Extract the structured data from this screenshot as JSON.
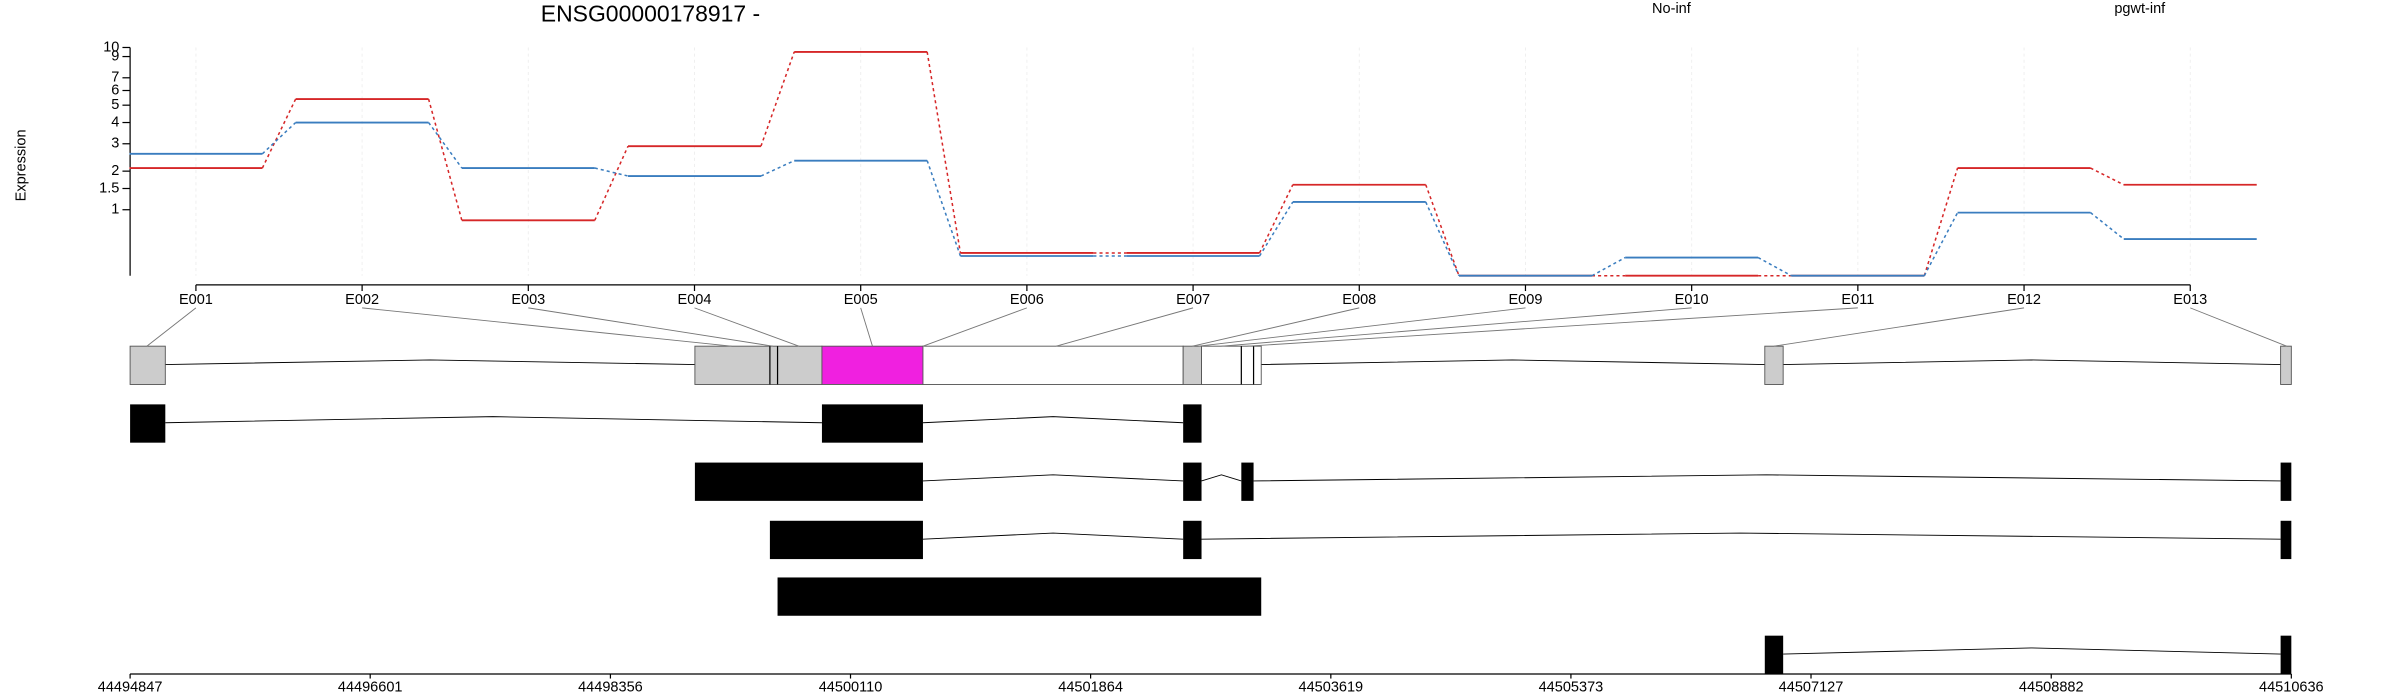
{
  "chart_data": {
    "type": "line",
    "title": "ENSG00000178917 -",
    "y_label": "Expression",
    "yscale": "log1p",
    "grid": true,
    "categories": [
      "E001",
      "E002",
      "E003",
      "E004",
      "E005",
      "E006",
      "E007",
      "E008",
      "E009",
      "E010",
      "E011",
      "E012",
      "E013"
    ],
    "series": [
      {
        "name": "No-inf",
        "color": "#d62728",
        "values": [
          2.1,
          5.4,
          0.79,
          2.9,
          9.5,
          0.27,
          0.27,
          1.6,
          0,
          0,
          0,
          2.1,
          1.6
        ]
      },
      {
        "name": "pgwt-inf",
        "color": "#3a7dbf",
        "values": [
          2.6,
          4.0,
          2.1,
          1.85,
          2.35,
          0.23,
          0.23,
          1.17,
          0,
          0.21,
          0,
          0.94,
          0.47
        ]
      }
    ],
    "ylim": [
      0,
      10
    ],
    "yticks": [
      1,
      1.5,
      2,
      3,
      4,
      5,
      6,
      7,
      9,
      10
    ],
    "genome_ticks": [
      44494847,
      44496601,
      44498356,
      44500110,
      44501864,
      44503619,
      44505373,
      44507127,
      44508882,
      44510636
    ]
  }
}
